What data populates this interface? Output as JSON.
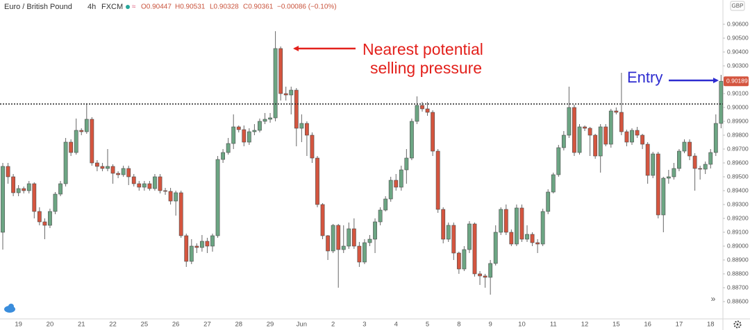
{
  "chart_data": {
    "type": "candlestick",
    "header": {
      "symbol": "Euro / British Pound",
      "interval": "4h",
      "exchange": "FXCM",
      "open": "O0.90447",
      "high": "H0.90531",
      "low": "L0.90328",
      "close": "C0.90361",
      "change": "−0.00086 (−0.10%)"
    },
    "currency": "GBP",
    "up_color": "#6ca583",
    "down_color": "#d4553f",
    "categories": [
      null,
      null,
      null,
      "19",
      null,
      null,
      null,
      null,
      null,
      "20",
      null,
      null,
      null,
      null,
      null,
      "21",
      null,
      null,
      null,
      null,
      null,
      "22",
      null,
      null,
      null,
      null,
      null,
      "25",
      null,
      null,
      null,
      null,
      null,
      "26",
      null,
      null,
      null,
      null,
      null,
      "27",
      null,
      null,
      null,
      null,
      null,
      "28",
      null,
      null,
      null,
      null,
      null,
      "29",
      null,
      null,
      null,
      null,
      null,
      "Jun",
      null,
      null,
      null,
      null,
      null,
      "2",
      null,
      null,
      null,
      null,
      null,
      "3",
      null,
      null,
      null,
      null,
      null,
      "4",
      null,
      null,
      null,
      null,
      null,
      "5",
      null,
      null,
      null,
      null,
      null,
      "8",
      null,
      null,
      null,
      null,
      null,
      "9",
      null,
      null,
      null,
      null,
      null,
      "10",
      null,
      null,
      null,
      null,
      null,
      "11",
      null,
      null,
      null,
      null,
      null,
      "12",
      null,
      null,
      null,
      null,
      null,
      "15",
      null,
      null,
      null,
      null,
      null,
      "16",
      null,
      null,
      null,
      null,
      null,
      "17",
      null,
      null,
      null,
      null,
      null,
      "18",
      null,
      null
    ],
    "open": [
      0.891,
      0.89575,
      0.895,
      0.89385,
      0.89415,
      0.894,
      0.8945,
      0.8925,
      0.89175,
      0.8915,
      0.8925,
      0.89375,
      0.8945,
      0.8975,
      0.89675,
      0.89835,
      0.89825,
      0.89915,
      0.896,
      0.89575,
      0.8956,
      0.89575,
      0.89525,
      0.89515,
      0.8956,
      0.895,
      0.8945,
      0.89425,
      0.8945,
      0.89415,
      0.895,
      0.894,
      0.89395,
      0.89325,
      0.89385,
      0.89075,
      0.8889,
      0.89,
      0.8899,
      0.89035,
      0.89,
      0.89075,
      0.89625,
      0.89675,
      0.8974,
      0.8986,
      0.8984,
      0.8975,
      0.89825,
      0.89835,
      0.899,
      0.89915,
      0.89925,
      0.90425,
      0.901,
      0.9009,
      0.90125,
      0.8985,
      0.89885,
      0.898,
      0.89635,
      0.893,
      0.89075,
      0.88965,
      0.8915,
      0.88975,
      0.89,
      0.89125,
      0.89,
      0.88885,
      0.89025,
      0.8905,
      0.89175,
      0.8926,
      0.8934,
      0.89475,
      0.89425,
      0.8955,
      0.89635,
      0.899,
      0.90015,
      0.8999,
      0.89965,
      0.89685,
      0.89265,
      0.8905,
      0.8915,
      0.8895,
      0.88835,
      0.88975,
      0.8916,
      0.888,
      0.88785,
      0.88775,
      0.88875,
      0.891,
      0.89265,
      0.891,
      0.89015,
      0.89275,
      0.8905,
      0.89085,
      0.89025,
      0.89015,
      0.8925,
      0.8939,
      0.89515,
      0.8971,
      0.898,
      0.9,
      0.89675,
      0.8986,
      0.8985,
      0.898,
      0.8965,
      0.8986,
      0.89735,
      0.89975,
      0.89965,
      0.89825,
      0.8975,
      0.89835,
      0.898,
      0.89735,
      0.8951,
      0.89665,
      0.89225,
      0.8949,
      0.895,
      0.8956,
      0.89685,
      0.8975,
      0.8965,
      0.8956,
      0.89555,
      0.8959,
      0.89675,
      0.89885
    ],
    "high": [
      0.896,
      0.896,
      0.8952,
      0.8944,
      0.8943,
      0.8947,
      0.8946,
      0.8928,
      0.892,
      0.8927,
      0.8939,
      0.8947,
      0.8978,
      0.8977,
      0.8992,
      0.8985,
      0.9003,
      0.8993,
      0.8962,
      0.896,
      0.897,
      0.8959,
      0.8954,
      0.8958,
      0.8958,
      0.8952,
      0.8947,
      0.8947,
      0.8947,
      0.8952,
      0.8952,
      0.8942,
      0.8942,
      0.894,
      0.894,
      0.8909,
      0.8905,
      0.8902,
      0.8908,
      0.8906,
      0.8909,
      0.8965,
      0.897,
      0.8978,
      0.8995,
      0.8987,
      0.8987,
      0.8985,
      0.8988,
      0.8992,
      0.8996,
      0.8996,
      0.9055,
      0.9044,
      0.9015,
      0.9015,
      0.9014,
      0.8995,
      0.899,
      0.8982,
      0.8965,
      0.8931,
      0.8908,
      0.8916,
      0.8916,
      0.8915,
      0.8917,
      0.892,
      0.8903,
      0.8905,
      0.8908,
      0.892,
      0.8928,
      0.8936,
      0.895,
      0.8952,
      0.8958,
      0.897,
      0.8992,
      0.9008,
      0.9004,
      0.9004,
      0.8998,
      0.897,
      0.8928,
      0.8917,
      0.8917,
      0.8896,
      0.89,
      0.8918,
      0.8917,
      0.8882,
      0.888,
      0.889,
      0.8915,
      0.8928,
      0.893,
      0.8912,
      0.893,
      0.893,
      0.8915,
      0.891,
      0.8905,
      0.8927,
      0.8941,
      0.8953,
      0.8973,
      0.8983,
      0.9015,
      0.9002,
      0.8988,
      0.8987,
      0.8986,
      0.8981,
      0.8988,
      0.8988,
      0.8999,
      0.9,
      0.9025,
      0.8984,
      0.8985,
      0.8986,
      0.8981,
      0.8975,
      0.8968,
      0.8968,
      0.895,
      0.8955,
      0.896,
      0.897,
      0.8977,
      0.8977,
      0.8967,
      0.8958,
      0.8961,
      0.897,
      0.8995,
      0.90235
    ],
    "low": [
      0.88975,
      0.8945,
      0.8936,
      0.8936,
      0.8938,
      0.8938,
      0.892,
      0.8915,
      0.8905,
      0.8913,
      0.8923,
      0.8936,
      0.8943,
      0.8965,
      0.8966,
      0.898,
      0.8981,
      0.8958,
      0.8954,
      0.8954,
      0.8954,
      0.8945,
      0.8949,
      0.895,
      0.8944,
      0.8943,
      0.894,
      0.894,
      0.894,
      0.894,
      0.8938,
      0.8937,
      0.893,
      0.8922,
      0.8906,
      0.8885,
      0.8887,
      0.8895,
      0.8896,
      0.8895,
      0.8896,
      0.8906,
      0.896,
      0.8966,
      0.897,
      0.8982,
      0.8972,
      0.8973,
      0.898,
      0.8982,
      0.8988,
      0.8989,
      0.899,
      0.9005,
      0.9005,
      0.8995,
      0.8972,
      0.8975,
      0.8965,
      0.896,
      0.8928,
      0.8905,
      0.889,
      0.8895,
      0.887,
      0.8895,
      0.8898,
      0.8898,
      0.8885,
      0.8887,
      0.89,
      0.8895,
      0.8915,
      0.8925,
      0.8932,
      0.894,
      0.894,
      0.8945,
      0.8962,
      0.8988,
      0.8997,
      0.8994,
      0.8965,
      0.8924,
      0.8902,
      0.8903,
      0.889,
      0.888,
      0.8882,
      0.8895,
      0.8878,
      0.8872,
      0.887,
      0.8865,
      0.8886,
      0.8908,
      0.8908,
      0.89,
      0.89,
      0.8903,
      0.8903,
      0.89,
      0.8895,
      0.89,
      0.8923,
      0.8938,
      0.895,
      0.8969,
      0.8978,
      0.8965,
      0.8966,
      0.8983,
      0.8965,
      0.8963,
      0.8953,
      0.8972,
      0.8971,
      0.8995,
      0.898,
      0.8972,
      0.8973,
      0.8978,
      0.897,
      0.8945,
      0.8949,
      0.892,
      0.891,
      0.8945,
      0.8948,
      0.8954,
      0.8967,
      0.8962,
      0.894,
      0.8948,
      0.8952,
      0.8956,
      0.8965,
      0.8985
    ],
    "close": [
      0.89575,
      0.895,
      0.89385,
      0.89415,
      0.894,
      0.8945,
      0.8925,
      0.89175,
      0.8915,
      0.8925,
      0.89375,
      0.8945,
      0.8975,
      0.89675,
      0.89835,
      0.89825,
      0.89915,
      0.896,
      0.89575,
      0.8956,
      0.89575,
      0.89525,
      0.89515,
      0.8956,
      0.895,
      0.8945,
      0.89425,
      0.8945,
      0.89415,
      0.895,
      0.894,
      0.89395,
      0.89325,
      0.89385,
      0.89075,
      0.8889,
      0.89,
      0.8899,
      0.89035,
      0.89,
      0.89075,
      0.89625,
      0.89675,
      0.8974,
      0.8986,
      0.8984,
      0.8975,
      0.89825,
      0.89835,
      0.899,
      0.89915,
      0.89925,
      0.90425,
      0.901,
      0.9009,
      0.90125,
      0.8985,
      0.89885,
      0.898,
      0.89635,
      0.893,
      0.89075,
      0.88965,
      0.8915,
      0.88975,
      0.89,
      0.89125,
      0.89,
      0.88885,
      0.89025,
      0.8905,
      0.89175,
      0.8926,
      0.8934,
      0.89475,
      0.89425,
      0.8955,
      0.89635,
      0.899,
      0.90015,
      0.8999,
      0.89965,
      0.89685,
      0.89265,
      0.8905,
      0.8915,
      0.8895,
      0.88835,
      0.88975,
      0.8916,
      0.888,
      0.88785,
      0.88775,
      0.88875,
      0.891,
      0.89265,
      0.891,
      0.89015,
      0.89275,
      0.8905,
      0.89085,
      0.89025,
      0.89015,
      0.8925,
      0.8939,
      0.89515,
      0.8971,
      0.898,
      0.9,
      0.89675,
      0.8986,
      0.8985,
      0.898,
      0.8965,
      0.8986,
      0.89735,
      0.89975,
      0.89965,
      0.89825,
      0.8975,
      0.89835,
      0.898,
      0.89735,
      0.8951,
      0.89665,
      0.89225,
      0.8949,
      0.895,
      0.8956,
      0.89685,
      0.8975,
      0.8965,
      0.8956,
      0.89555,
      0.8959,
      0.89675,
      0.89885,
      0.90189
    ],
    "current_price": 0.90189,
    "resistance": 0.90025,
    "ylim": [
      0.88475,
      0.90775
    ],
    "yticks": [
      {
        "value": 0.906,
        "label": "0.90600"
      },
      {
        "value": 0.905,
        "label": "0.90500"
      },
      {
        "value": 0.904,
        "label": "0.90400"
      },
      {
        "value": 0.903,
        "label": "0.90300"
      },
      {
        "value": 0.901,
        "label": "0.90100"
      },
      {
        "value": 0.9,
        "label": "0.90000"
      },
      {
        "value": 0.899,
        "label": "0.89900"
      },
      {
        "value": 0.898,
        "label": "0.89800"
      },
      {
        "value": 0.897,
        "label": "0.89700"
      },
      {
        "value": 0.896,
        "label": "0.89600"
      },
      {
        "value": 0.895,
        "label": "0.89500"
      },
      {
        "value": 0.894,
        "label": "0.89400"
      },
      {
        "value": 0.893,
        "label": "0.89300"
      },
      {
        "value": 0.892,
        "label": "0.89200"
      },
      {
        "value": 0.891,
        "label": "0.89100"
      },
      {
        "value": 0.89,
        "label": "0.89000"
      },
      {
        "value": 0.889,
        "label": "0.88900"
      },
      {
        "value": 0.888,
        "label": "0.88800"
      },
      {
        "value": 0.887,
        "label": "0.88700"
      },
      {
        "value": 0.886,
        "label": "0.88600"
      }
    ],
    "annotations": [
      {
        "lines": [
          "Nearest potential",
          "selling pressure"
        ],
        "color": "#e3211c"
      },
      {
        "lines": [
          "Entry"
        ],
        "color": "#2d2bd0"
      }
    ]
  }
}
